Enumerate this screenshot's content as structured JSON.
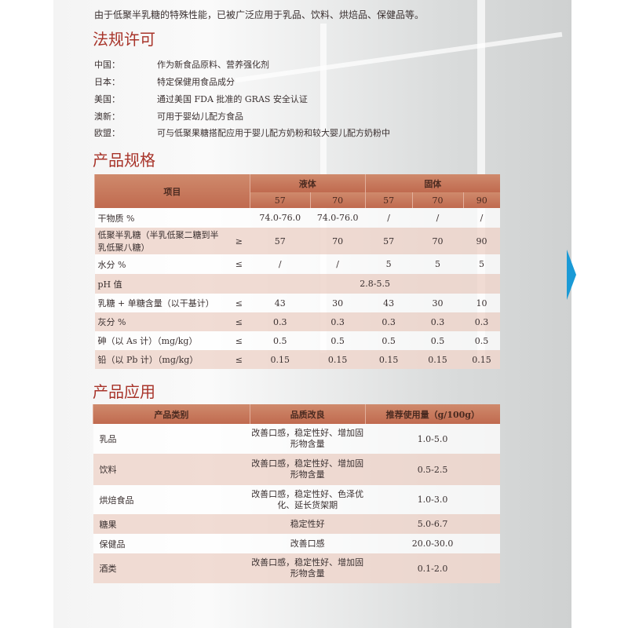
{
  "intro": "由于低聚半乳糖的特殊性能，已被广泛应用于乳品、饮料、烘焙品、保健品等。",
  "regulatory": {
    "title": "法规许可",
    "items": [
      {
        "region": "中国：",
        "text": "作为新食品原料、营养强化剂"
      },
      {
        "region": "日本：",
        "text": "特定保健用食品成分"
      },
      {
        "region": "美国：",
        "text": "通过美国 FDA 批准的 GRAS 安全认证"
      },
      {
        "region": "澳新：",
        "text": "可用于婴幼儿配方食品"
      },
      {
        "region": "欧盟：",
        "text": "可与低聚果糖搭配应用于婴儿配方奶粉和较大婴儿配方奶粉中"
      }
    ]
  },
  "specs": {
    "title": "产品规格",
    "header": {
      "item": "项目",
      "liquid": "液体",
      "solid": "固体",
      "grades": [
        "57",
        "70",
        "57",
        "70",
        "90"
      ]
    },
    "rows": [
      {
        "name": "干物质 %",
        "op": "",
        "values": [
          "74.0-76.0",
          "74.0-76.0",
          "/",
          "/",
          "/"
        ]
      },
      {
        "name": "低聚半乳糖（半乳低聚二糖到半乳低聚八糖）",
        "op": "≥",
        "values": [
          "57",
          "70",
          "57",
          "70",
          "90"
        ]
      },
      {
        "name": "水分 %",
        "op": "≤",
        "values": [
          "/",
          "/",
          "5",
          "5",
          "5"
        ]
      },
      {
        "name": "pH 值",
        "op": "",
        "merged": "2.8-5.5"
      },
      {
        "name": "乳糖 + 单糖含量（以干基计）",
        "op": "≤",
        "values": [
          "43",
          "30",
          "43",
          "30",
          "10"
        ]
      },
      {
        "name": "灰分 %",
        "op": "≤",
        "values": [
          "0.3",
          "0.3",
          "0.3",
          "0.3",
          "0.3"
        ]
      },
      {
        "name": "砷（以 As 计）（mg/kg）",
        "op": "≤",
        "values": [
          "0.5",
          "0.5",
          "0.5",
          "0.5",
          "0.5"
        ]
      },
      {
        "name": "铅（以 Pb 计）（mg/kg）",
        "op": "≤",
        "values": [
          "0.15",
          "0.15",
          "0.15",
          "0.15",
          "0.15"
        ]
      }
    ]
  },
  "applications": {
    "title": "产品应用",
    "header": [
      "产品类别",
      "品质改良",
      "推荐使用量（g/100g）"
    ],
    "rows": [
      {
        "category": "乳品",
        "benefit": "改善口感，稳定性好、增加固形物含量",
        "dose": "1.0-5.0"
      },
      {
        "category": "饮料",
        "benefit": "改善口感，稳定性好、增加固形物含量",
        "dose": "0.5-2.5"
      },
      {
        "category": "烘焙食品",
        "benefit": "改善口感，稳定性好、色泽优化、延长货架期",
        "dose": "1.0-3.0"
      },
      {
        "category": "糖果",
        "benefit": "稳定性好",
        "dose": "5.0-6.7"
      },
      {
        "category": "保健品",
        "benefit": "改善口感",
        "dose": "20.0-30.0"
      },
      {
        "category": "酒类",
        "benefit": "改善口感，稳定性好、增加固形物含量",
        "dose": "0.1-2.0"
      }
    ]
  },
  "colors": {
    "heading": "#a8342a",
    "table_header": "#c8775a",
    "row_alt": "#eed6cc",
    "edge_marker": "#1a9ad6"
  }
}
